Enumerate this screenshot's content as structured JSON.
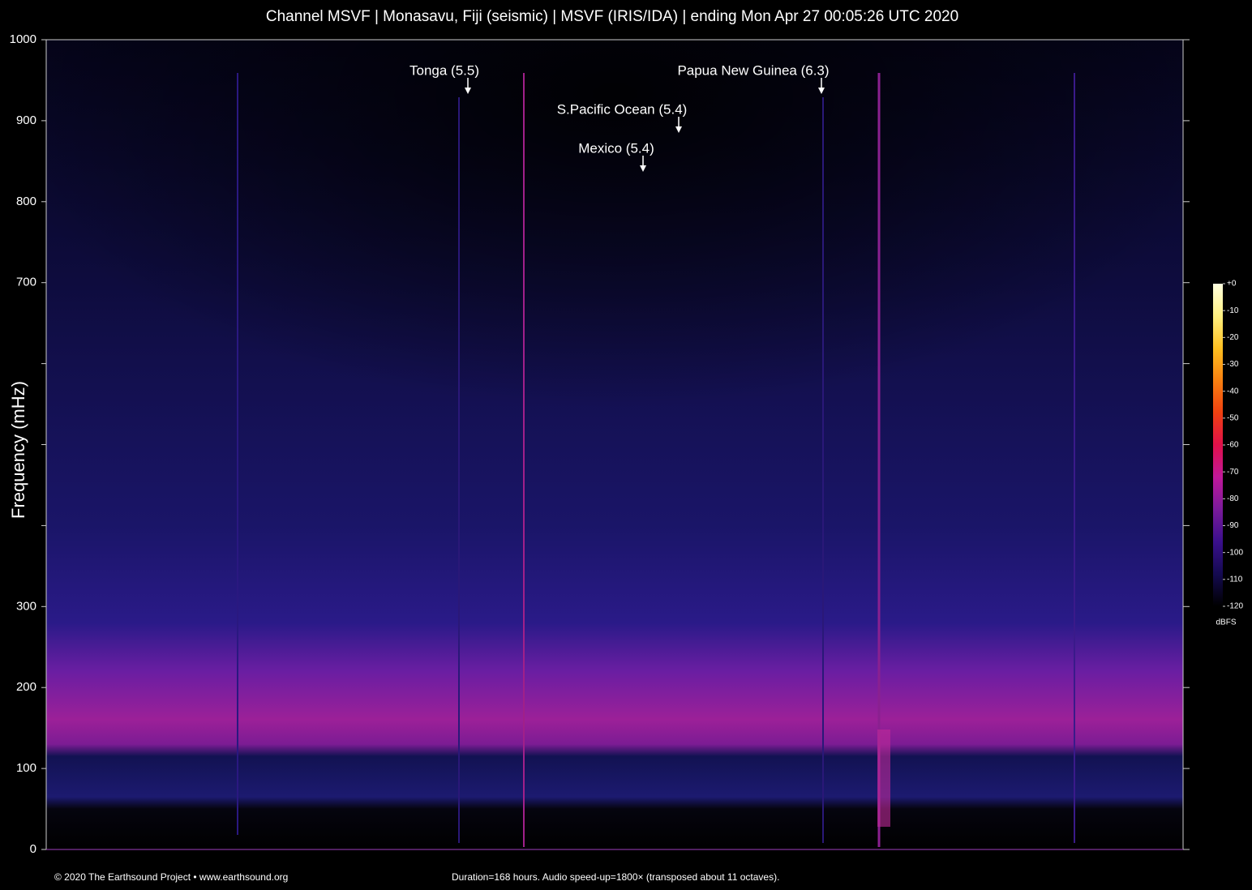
{
  "chart_data": {
    "type": "spectrogram",
    "title": "Channel MSVF | Monasavu, Fiji (seismic) | MSVF (IRIS/IDA) | ending Mon Apr 27 00:05:26 UTC 2020",
    "ylabel": "Frequency (mHz)",
    "ylim": [
      0,
      1000
    ],
    "yticks": [
      0,
      100,
      200,
      300,
      700,
      800,
      900,
      1000
    ],
    "yticks_minor": [
      400,
      500,
      600
    ],
    "annotations": [
      "Tonga (5.5)",
      "S.Pacific Ocean (5.4)",
      "Mexico (5.4)",
      "Papua New Guinea (6.3)"
    ],
    "colorbar": {
      "label": "dBFS",
      "lim": [
        -120,
        0
      ],
      "ticks": [
        {
          "value": 0,
          "label": "+0"
        },
        -10,
        -20,
        -30,
        -40,
        -50,
        -60,
        -70,
        -80,
        -90,
        -100,
        -110,
        -120
      ],
      "colors": [
        "#000000",
        "#140a50",
        "#3a0f8c",
        "#7a1a9a",
        "#c0189a",
        "#e0104a",
        "#f04010",
        "#f88010",
        "#ffc020",
        "#fff080",
        "#ffffe0"
      ]
    },
    "footer_left": "© 2020 The Earthsound Project • www.earthsound.org",
    "footer_center": "Duration=168 hours. Audio speed-up=1800× (transposed about 11 octaves)."
  }
}
